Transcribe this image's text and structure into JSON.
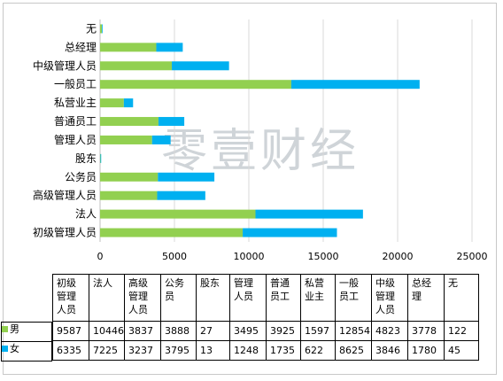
{
  "watermark": "零壹财经",
  "chart_data": {
    "type": "bar",
    "orientation": "horizontal",
    "stacked": true,
    "categories": [
      "初级管理人员",
      "法人",
      "高级管理人员",
      "公务员",
      "股东",
      "管理人员",
      "普通员工",
      "私营业主",
      "一般员工",
      "中级管理人员",
      "总经理",
      "无"
    ],
    "table_headers": [
      "初级\n管理\n人员",
      "法人",
      "高级\n管理\n人员",
      "公务\n员",
      "股东",
      "管理\n人员",
      "普通\n员工",
      "私营\n业主",
      "一般\n员工",
      "中级\n管理\n人员",
      "总经\n理",
      "无"
    ],
    "series": [
      {
        "name": "男",
        "color": "#92d050",
        "values": [
          9587,
          10446,
          3837,
          3888,
          27,
          3495,
          3925,
          1597,
          12854,
          4823,
          3778,
          122
        ]
      },
      {
        "name": "女",
        "color": "#00b0f0",
        "values": [
          6335,
          7225,
          3237,
          3795,
          13,
          1248,
          1735,
          622,
          8625,
          3846,
          1780,
          45
        ]
      }
    ],
    "xlim": [
      0,
      25000
    ],
    "xticks": [
      "0",
      "5000",
      "10000",
      "15000",
      "20000",
      "25000"
    ],
    "grid": true,
    "legend": "data-table"
  }
}
